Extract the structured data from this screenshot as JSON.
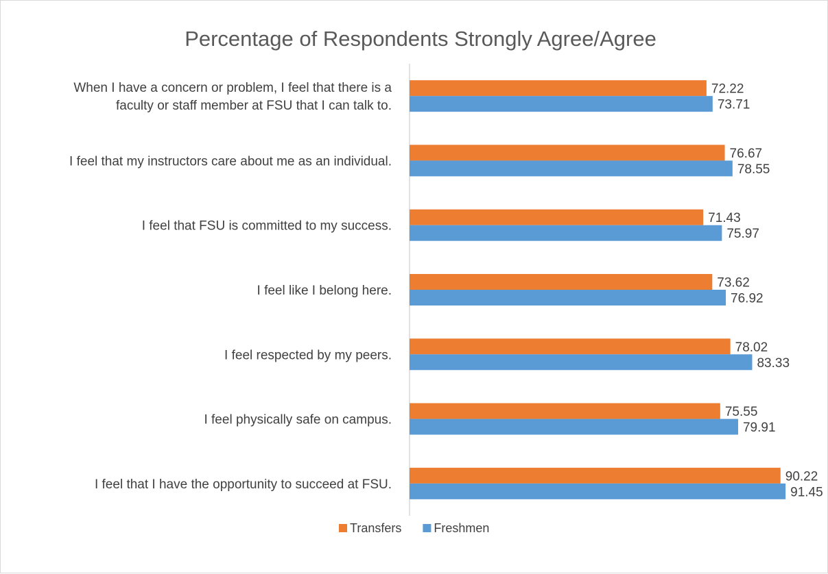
{
  "chart_data": {
    "type": "bar",
    "orientation": "horizontal",
    "title": "Percentage of Respondents Strongly Agree/Agree",
    "categories": [
      [
        "When I have a concern or problem, I feel that there is a",
        "faculty or staff member at FSU that I can talk to."
      ],
      [
        "I feel that my instructors care about me as an individual."
      ],
      [
        "I feel that FSU is committed to my success."
      ],
      [
        "I feel like I belong here."
      ],
      [
        "I feel respected by my peers."
      ],
      [
        "I feel physically safe on campus."
      ],
      [
        "I feel that I have the opportunity to succeed at FSU."
      ]
    ],
    "series": [
      {
        "name": "Transfers",
        "color": "#ED7D31",
        "values": [
          72.22,
          76.67,
          71.43,
          73.62,
          78.02,
          75.55,
          90.22
        ]
      },
      {
        "name": "Freshmen",
        "color": "#5B9BD5",
        "values": [
          73.71,
          78.55,
          75.97,
          76.92,
          83.33,
          79.91,
          91.45
        ]
      }
    ],
    "xlim": [
      0,
      100
    ],
    "grid": false,
    "legend": "bottom-center",
    "data_labels": true
  }
}
